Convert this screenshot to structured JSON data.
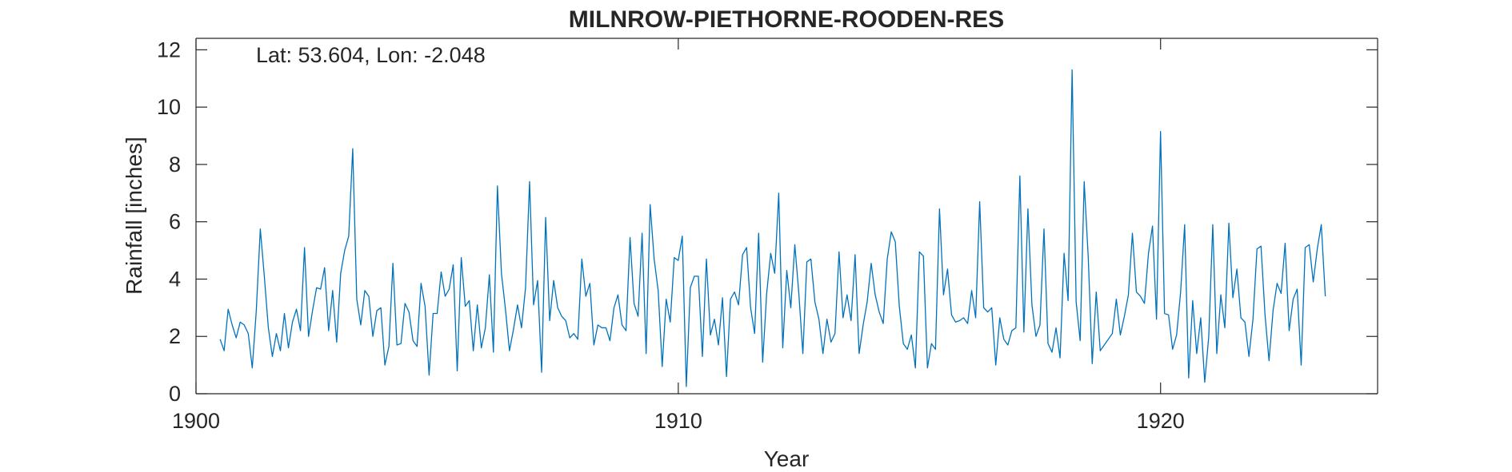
{
  "chart_data": {
    "type": "line",
    "title": "MILNROW-PIETHORNE-ROODEN-RES",
    "xlabel": "Year",
    "ylabel": "Rainfall [inches]",
    "annotation": "Lat: 53.604, Lon: -2.048",
    "xlim": [
      1900,
      1924.5
    ],
    "ylim": [
      0,
      12.4
    ],
    "xticks": [
      1900,
      1910,
      1920
    ],
    "xtick_labels": [
      "1900",
      "1910",
      "1920"
    ],
    "yticks": [
      0,
      2,
      4,
      6,
      8,
      10,
      12
    ],
    "ytick_labels": [
      "0",
      "2",
      "4",
      "6",
      "8",
      "10",
      "12"
    ],
    "grid": false,
    "line_color": "#0072BD",
    "series": [
      {
        "start_year": 1900.5,
        "step": 0.08333,
        "values": [
          1.9,
          1.5,
          2.95,
          2.4,
          1.95,
          2.5,
          2.4,
          2.1,
          0.9,
          2.9,
          5.75,
          4.1,
          2.3,
          1.3,
          2.1,
          1.5,
          2.8,
          1.6,
          2.5,
          2.95,
          2.2,
          5.1,
          2.0,
          2.9,
          3.7,
          3.65,
          4.4,
          2.2,
          3.6,
          1.8,
          4.2,
          5.0,
          5.5,
          8.55,
          3.3,
          2.4,
          3.6,
          3.4,
          2.0,
          2.9,
          3.0,
          1.0,
          1.65,
          4.55,
          1.7,
          1.75,
          3.15,
          2.85,
          1.85,
          1.65,
          3.85,
          3.05,
          0.65,
          2.8,
          2.8,
          4.25,
          3.4,
          3.65,
          4.5,
          0.8,
          4.75,
          3.05,
          3.25,
          1.5,
          3.1,
          1.6,
          2.3,
          4.15,
          1.45,
          7.25,
          4.2,
          2.95,
          1.5,
          2.25,
          3.1,
          2.3,
          3.7,
          7.4,
          3.1,
          3.95,
          0.75,
          6.15,
          2.55,
          3.95,
          3.0,
          2.7,
          2.55,
          1.95,
          2.1,
          1.9,
          4.7,
          3.4,
          3.85,
          1.7,
          2.4,
          2.3,
          2.3,
          1.85,
          3.0,
          3.45,
          2.4,
          2.2,
          5.45,
          3.15,
          2.7,
          5.6,
          1.4,
          6.6,
          4.7,
          3.6,
          0.95,
          3.3,
          2.5,
          4.75,
          4.65,
          5.5,
          0.25,
          3.7,
          4.1,
          4.1,
          1.3,
          4.7,
          2.05,
          2.6,
          1.7,
          3.35,
          0.6,
          3.3,
          3.55,
          3.1,
          4.85,
          5.1,
          3.0,
          2.1,
          5.6,
          1.1,
          3.5,
          4.9,
          4.2,
          7.0,
          1.6,
          4.3,
          3.0,
          5.2,
          3.5,
          1.4,
          4.6,
          4.7,
          3.2,
          2.6,
          1.4,
          2.6,
          1.8,
          2.1,
          4.95,
          2.65,
          3.45,
          2.55,
          4.85,
          1.4,
          2.4,
          3.2,
          4.55,
          3.45,
          2.85,
          2.45,
          4.7,
          5.65,
          5.3,
          3.05,
          1.75,
          1.55,
          2.05,
          0.9,
          4.95,
          4.8,
          0.9,
          1.75,
          1.55,
          6.45,
          3.45,
          4.35,
          2.75,
          2.5,
          2.55,
          2.65,
          2.45,
          3.6,
          2.65,
          6.7,
          3.0,
          2.85,
          3.0,
          1.0,
          2.65,
          1.9,
          1.7,
          2.2,
          2.3,
          7.6,
          2.15,
          6.45,
          3.1,
          2.0,
          2.4,
          5.75,
          1.75,
          1.45,
          2.3,
          1.25,
          4.9,
          3.25,
          11.3,
          3.2,
          1.85,
          7.4,
          4.8,
          1.05,
          3.55,
          1.5,
          1.7,
          1.9,
          2.1,
          3.3,
          2.05,
          2.7,
          3.45,
          5.6,
          3.55,
          3.4,
          3.15,
          4.9,
          5.85,
          2.6,
          9.15,
          2.8,
          2.75,
          1.55,
          2.05,
          3.55,
          5.9,
          0.55,
          3.25,
          1.4,
          2.65,
          0.4,
          2.0,
          5.9,
          1.4,
          3.45,
          2.3,
          5.95,
          3.35,
          4.35,
          2.65,
          2.5,
          1.3,
          2.6,
          5.05,
          5.15,
          2.75,
          1.15,
          2.9,
          3.85,
          3.5,
          5.25,
          2.2,
          3.3,
          3.65,
          1.0,
          5.1,
          5.2,
          3.9,
          5.05,
          5.9,
          3.4
        ]
      }
    ]
  }
}
